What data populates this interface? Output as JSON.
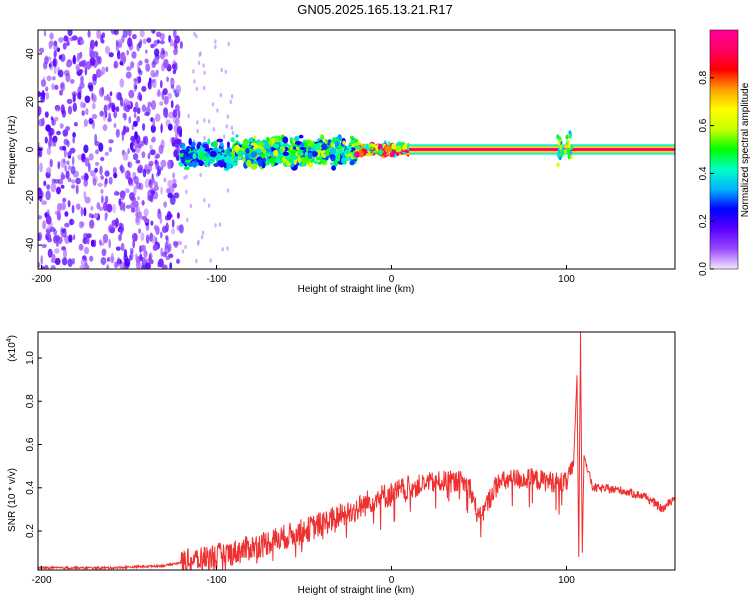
{
  "page": {
    "title": "GN05.2025.165.13.21.R17"
  },
  "chart_data": [
    {
      "type": "heatmap",
      "title": "GN05.2025.165.13.21.R17",
      "xlabel": "Height of straight line (km)",
      "ylabel": "Frequency (Hz)",
      "xlim": [
        -202,
        162
      ],
      "ylim": [
        -50,
        50
      ],
      "xticks": [
        -200,
        -100,
        0,
        100
      ],
      "yticks": [
        -40,
        -20,
        0,
        20,
        40
      ],
      "colorbar": {
        "label": "Normalized spectral amplitude",
        "range": [
          0,
          1
        ],
        "ticks": [
          "0.0",
          "0.2",
          "0.4",
          "0.6",
          "0.8"
        ],
        "colors": [
          "#f4e6ff",
          "#9a4bff",
          "#5a00ff",
          "#0000ff",
          "#00b4ff",
          "#00ffc8",
          "#00ff00",
          "#c8ff00",
          "#ffff00",
          "#ffa000",
          "#ff0000",
          "#ff0064",
          "#ff0096"
        ]
      },
      "regions": [
        {
          "x_range": [
            -202,
            -120
          ],
          "freq_range": [
            -50,
            50
          ],
          "amplitude": 0.12,
          "pattern": "scattered noise"
        },
        {
          "x_range": [
            -120,
            -90
          ],
          "freq_range": [
            -10,
            5
          ],
          "amplitude": 0.35,
          "pattern": "noisy signal"
        },
        {
          "x_range": [
            -90,
            -20
          ],
          "freq_range": [
            -10,
            8
          ],
          "amplitude": 0.45,
          "pattern": "broadened signal"
        },
        {
          "x_range": [
            -20,
            10
          ],
          "freq_range": [
            -3,
            3
          ],
          "amplitude": 0.75,
          "pattern": "narrowing line"
        },
        {
          "x_range": [
            10,
            162
          ],
          "freq_range": [
            -1,
            1
          ],
          "amplitude": 0.95,
          "pattern": "stable line"
        }
      ]
    },
    {
      "type": "line",
      "xlabel": "Height of straight line (km)",
      "ylabel": "SNR (10 * v/v)",
      "y_scale_label": "(x10^4)",
      "y_scale_base": "(x10",
      "y_scale_exp": "4",
      "xlim": [
        -202,
        162
      ],
      "ylim": [
        0.02,
        1.12
      ],
      "xticks": [
        -200,
        -100,
        0,
        100
      ],
      "yticks": [
        0.2,
        0.4,
        0.6,
        0.8,
        1.0
      ],
      "line_color": "#ee3030",
      "series": [
        {
          "values": [
            {
              "x": -202,
              "y": 0.03
            },
            {
              "x": -160,
              "y": 0.03
            },
            {
              "x": -130,
              "y": 0.04
            },
            {
              "x": -110,
              "y": 0.07
            },
            {
              "x": -90,
              "y": 0.1
            },
            {
              "x": -70,
              "y": 0.15
            },
            {
              "x": -50,
              "y": 0.2
            },
            {
              "x": -35,
              "y": 0.25
            },
            {
              "x": -20,
              "y": 0.3
            },
            {
              "x": -10,
              "y": 0.35
            },
            {
              "x": 0,
              "y": 0.37
            },
            {
              "x": 10,
              "y": 0.4
            },
            {
              "x": 20,
              "y": 0.42
            },
            {
              "x": 30,
              "y": 0.43
            },
            {
              "x": 40,
              "y": 0.43
            },
            {
              "x": 45,
              "y": 0.4
            },
            {
              "x": 50,
              "y": 0.25
            },
            {
              "x": 55,
              "y": 0.33
            },
            {
              "x": 60,
              "y": 0.42
            },
            {
              "x": 70,
              "y": 0.44
            },
            {
              "x": 80,
              "y": 0.44
            },
            {
              "x": 90,
              "y": 0.43
            },
            {
              "x": 100,
              "y": 0.42
            },
            {
              "x": 104,
              "y": 0.5
            },
            {
              "x": 106,
              "y": 0.92
            },
            {
              "x": 107,
              "y": 0.08
            },
            {
              "x": 108,
              "y": 1.12
            },
            {
              "x": 109,
              "y": 0.1
            },
            {
              "x": 110,
              "y": 0.55
            },
            {
              "x": 115,
              "y": 0.4
            },
            {
              "x": 130,
              "y": 0.39
            },
            {
              "x": 145,
              "y": 0.36
            },
            {
              "x": 155,
              "y": 0.3
            },
            {
              "x": 160,
              "y": 0.34
            },
            {
              "x": 162,
              "y": 0.36
            }
          ]
        }
      ]
    }
  ]
}
